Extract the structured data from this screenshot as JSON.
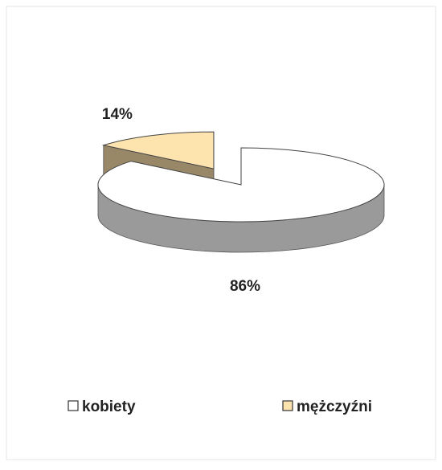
{
  "chart_data": {
    "type": "pie3d",
    "categories": [
      "kobiety",
      "mężczyźni"
    ],
    "values": [
      86,
      14
    ],
    "value_labels": [
      "86%",
      "14%"
    ],
    "colors": [
      "#ffffff",
      "#fde3ad"
    ],
    "legend": "bottom"
  }
}
